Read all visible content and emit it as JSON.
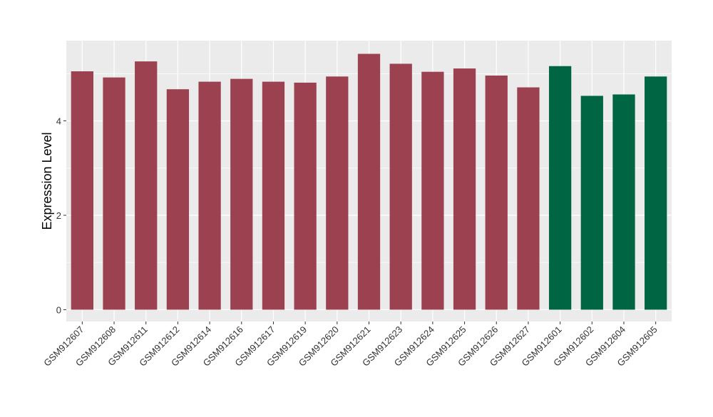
{
  "chart_data": {
    "type": "bar",
    "ylabel": "Expression Level",
    "xlabel": "",
    "ylim": [
      -0.25,
      5.7
    ],
    "y_ticks": [
      0,
      2,
      4
    ],
    "grid": true,
    "categories": [
      "GSM912607",
      "GSM912608",
      "GSM912611",
      "GSM912612",
      "GSM912614",
      "GSM912616",
      "GSM912617",
      "GSM912619",
      "GSM912620",
      "GSM912621",
      "GSM912623",
      "GSM912624",
      "GSM912625",
      "GSM912626",
      "GSM912627",
      "GSM912601",
      "GSM912602",
      "GSM912604",
      "GSM912605"
    ],
    "values": [
      5.05,
      4.92,
      5.26,
      4.67,
      4.83,
      4.89,
      4.83,
      4.81,
      4.94,
      5.42,
      5.21,
      5.04,
      5.11,
      4.96,
      4.71,
      5.16,
      4.53,
      4.56,
      4.94
    ],
    "colors": [
      "#9b4150",
      "#9b4150",
      "#9b4150",
      "#9b4150",
      "#9b4150",
      "#9b4150",
      "#9b4150",
      "#9b4150",
      "#9b4150",
      "#9b4150",
      "#9b4150",
      "#9b4150",
      "#9b4150",
      "#9b4150",
      "#9b4150",
      "#006543",
      "#006543",
      "#006543",
      "#006543"
    ],
    "panel_background": "#ebebeb",
    "gridline_color": "#ffffff"
  }
}
